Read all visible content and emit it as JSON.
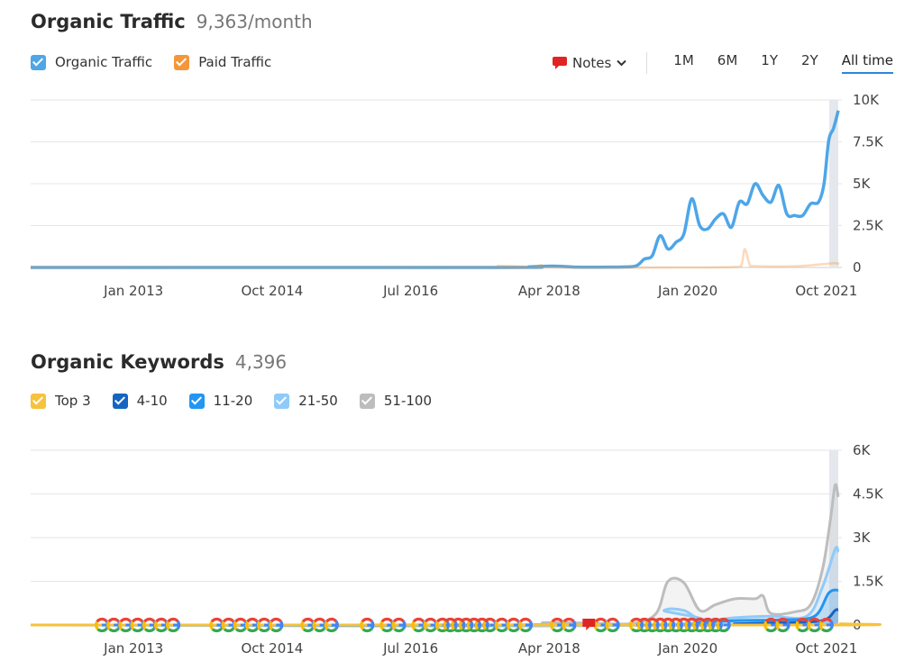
{
  "traffic": {
    "title": "Organic Traffic",
    "subtitle": "9,363/month",
    "legend": [
      {
        "label": "Organic Traffic",
        "color": "#4da6e8"
      },
      {
        "label": "Paid Traffic",
        "color": "#f5963a"
      }
    ],
    "notes_label": "Notes",
    "ranges": [
      "1M",
      "6M",
      "1Y",
      "2Y",
      "All time"
    ],
    "active_range": "All time"
  },
  "keywords": {
    "title": "Organic Keywords",
    "subtitle": "4,396",
    "legend": [
      {
        "label": "Top 3",
        "color": "#f7c23c"
      },
      {
        "label": "4-10",
        "color": "#1565c0"
      },
      {
        "label": "11-20",
        "color": "#2196f3"
      },
      {
        "label": "21-50",
        "color": "#90caf9"
      },
      {
        "label": "51-100",
        "color": "#bdbdbd"
      }
    ]
  },
  "chart_data": [
    {
      "type": "line",
      "title": "Organic Traffic",
      "x_ticks": [
        "Jan 2013",
        "Oct 2014",
        "Jul 2016",
        "Apr 2018",
        "Jan 2020",
        "Oct 2021"
      ],
      "x_range": [
        2011.7,
        2021.9
      ],
      "ylim": [
        0,
        10000
      ],
      "y_ticks": [
        "0",
        "2.5K",
        "5K",
        "7.5K",
        "10K"
      ],
      "grid": true,
      "series": [
        {
          "name": "Organic Traffic",
          "color": "#4da6e8",
          "points": [
            [
              2011.7,
              0
            ],
            [
              2017.6,
              0
            ],
            [
              2018.0,
              40
            ],
            [
              2018.3,
              80
            ],
            [
              2018.6,
              20
            ],
            [
              2019.0,
              20
            ],
            [
              2019.2,
              30
            ],
            [
              2019.35,
              100
            ],
            [
              2019.45,
              500
            ],
            [
              2019.55,
              700
            ],
            [
              2019.65,
              1900
            ],
            [
              2019.75,
              1100
            ],
            [
              2019.85,
              1500
            ],
            [
              2019.95,
              2000
            ],
            [
              2020.05,
              4100
            ],
            [
              2020.15,
              2500
            ],
            [
              2020.25,
              2300
            ],
            [
              2020.35,
              2900
            ],
            [
              2020.45,
              3200
            ],
            [
              2020.55,
              2400
            ],
            [
              2020.65,
              3900
            ],
            [
              2020.75,
              3800
            ],
            [
              2020.85,
              5000
            ],
            [
              2020.95,
              4300
            ],
            [
              2021.05,
              3900
            ],
            [
              2021.15,
              4900
            ],
            [
              2021.25,
              3200
            ],
            [
              2021.35,
              3100
            ],
            [
              2021.45,
              3100
            ],
            [
              2021.55,
              3800
            ],
            [
              2021.65,
              3900
            ],
            [
              2021.72,
              5000
            ],
            [
              2021.78,
              7600
            ],
            [
              2021.84,
              8300
            ],
            [
              2021.9,
              9363
            ]
          ]
        },
        {
          "name": "Paid Traffic",
          "color": "#f5963a",
          "points": [
            [
              2011.7,
              0
            ],
            [
              2017.5,
              0
            ],
            [
              2017.6,
              100
            ],
            [
              2017.7,
              0
            ],
            [
              2018.1,
              0
            ],
            [
              2018.15,
              150
            ],
            [
              2018.25,
              0
            ],
            [
              2020.0,
              0
            ],
            [
              2020.6,
              30
            ],
            [
              2020.68,
              200
            ],
            [
              2020.72,
              1100
            ],
            [
              2020.78,
              200
            ],
            [
              2020.85,
              80
            ],
            [
              2021.4,
              80
            ],
            [
              2021.85,
              260
            ],
            [
              2021.9,
              150
            ]
          ]
        }
      ]
    },
    {
      "type": "area",
      "title": "Organic Keywords",
      "x_ticks": [
        "Jan 2013",
        "Oct 2014",
        "Jul 2016",
        "Apr 2018",
        "Jan 2020",
        "Oct 2021"
      ],
      "x_range": [
        2011.7,
        2021.9
      ],
      "ylim": [
        0,
        6000
      ],
      "y_ticks": [
        "0",
        "1.5K",
        "3K",
        "4.5K",
        "6K"
      ],
      "grid": true,
      "series": [
        {
          "name": "51-100",
          "color": "#bdbdbd",
          "points": [
            [
              2011.7,
              0
            ],
            [
              2017.6,
              0
            ],
            [
              2018.2,
              80
            ],
            [
              2018.8,
              60
            ],
            [
              2019.3,
              50
            ],
            [
              2019.6,
              400
            ],
            [
              2019.75,
              1500
            ],
            [
              2019.95,
              1450
            ],
            [
              2020.15,
              500
            ],
            [
              2020.35,
              700
            ],
            [
              2020.6,
              900
            ],
            [
              2020.85,
              900
            ],
            [
              2020.95,
              1000
            ],
            [
              2021.05,
              400
            ],
            [
              2021.35,
              450
            ],
            [
              2021.55,
              700
            ],
            [
              2021.7,
              1900
            ],
            [
              2021.8,
              3600
            ],
            [
              2021.86,
              4800
            ],
            [
              2021.9,
              4396
            ]
          ]
        },
        {
          "name": "21-50",
          "color": "#90caf9",
          "points": [
            [
              2011.7,
              0
            ],
            [
              2019.6,
              0
            ],
            [
              2019.7,
              500
            ],
            [
              2019.95,
              500
            ],
            [
              2020.2,
              150
            ],
            [
              2020.6,
              250
            ],
            [
              2021.05,
              300
            ],
            [
              2021.5,
              300
            ],
            [
              2021.7,
              1300
            ],
            [
              2021.86,
              2600
            ],
            [
              2021.9,
              2500
            ]
          ]
        },
        {
          "name": "11-20",
          "color": "#2196f3",
          "points": [
            [
              2011.7,
              0
            ],
            [
              2019.6,
              0
            ],
            [
              2020.1,
              80
            ],
            [
              2020.6,
              150
            ],
            [
              2021.2,
              180
            ],
            [
              2021.6,
              300
            ],
            [
              2021.78,
              1100
            ],
            [
              2021.9,
              1200
            ]
          ]
        },
        {
          "name": "4-10",
          "color": "#1565c0",
          "points": [
            [
              2011.7,
              0
            ],
            [
              2020.2,
              0
            ],
            [
              2020.6,
              40
            ],
            [
              2021.2,
              80
            ],
            [
              2021.7,
              150
            ],
            [
              2021.86,
              500
            ],
            [
              2021.9,
              520
            ]
          ]
        },
        {
          "name": "Top 3",
          "color": "#f7c23c",
          "points": [
            [
              2011.7,
              0
            ],
            [
              2021.6,
              0
            ],
            [
              2021.9,
              40
            ]
          ]
        }
      ],
      "google_update_markers": [
        2012.6,
        2012.75,
        2012.9,
        2013.05,
        2013.2,
        2013.35,
        2013.5,
        2014.05,
        2014.2,
        2014.35,
        2014.5,
        2014.65,
        2014.8,
        2015.2,
        2015.35,
        2015.5,
        2015.95,
        2016.2,
        2016.35,
        2016.6,
        2016.75,
        2016.9,
        2017.0,
        2017.1,
        2017.2,
        2017.3,
        2017.4,
        2017.5,
        2017.65,
        2017.8,
        2017.95,
        2018.35,
        2018.5,
        2018.9,
        2019.05,
        2019.35,
        2019.45,
        2019.55,
        2019.65,
        2019.75,
        2019.85,
        2019.95,
        2020.05,
        2020.15,
        2020.25,
        2020.35,
        2020.45,
        2021.05,
        2021.2,
        2021.45,
        2021.6,
        2021.75
      ],
      "note_marker": 2018.75
    }
  ]
}
